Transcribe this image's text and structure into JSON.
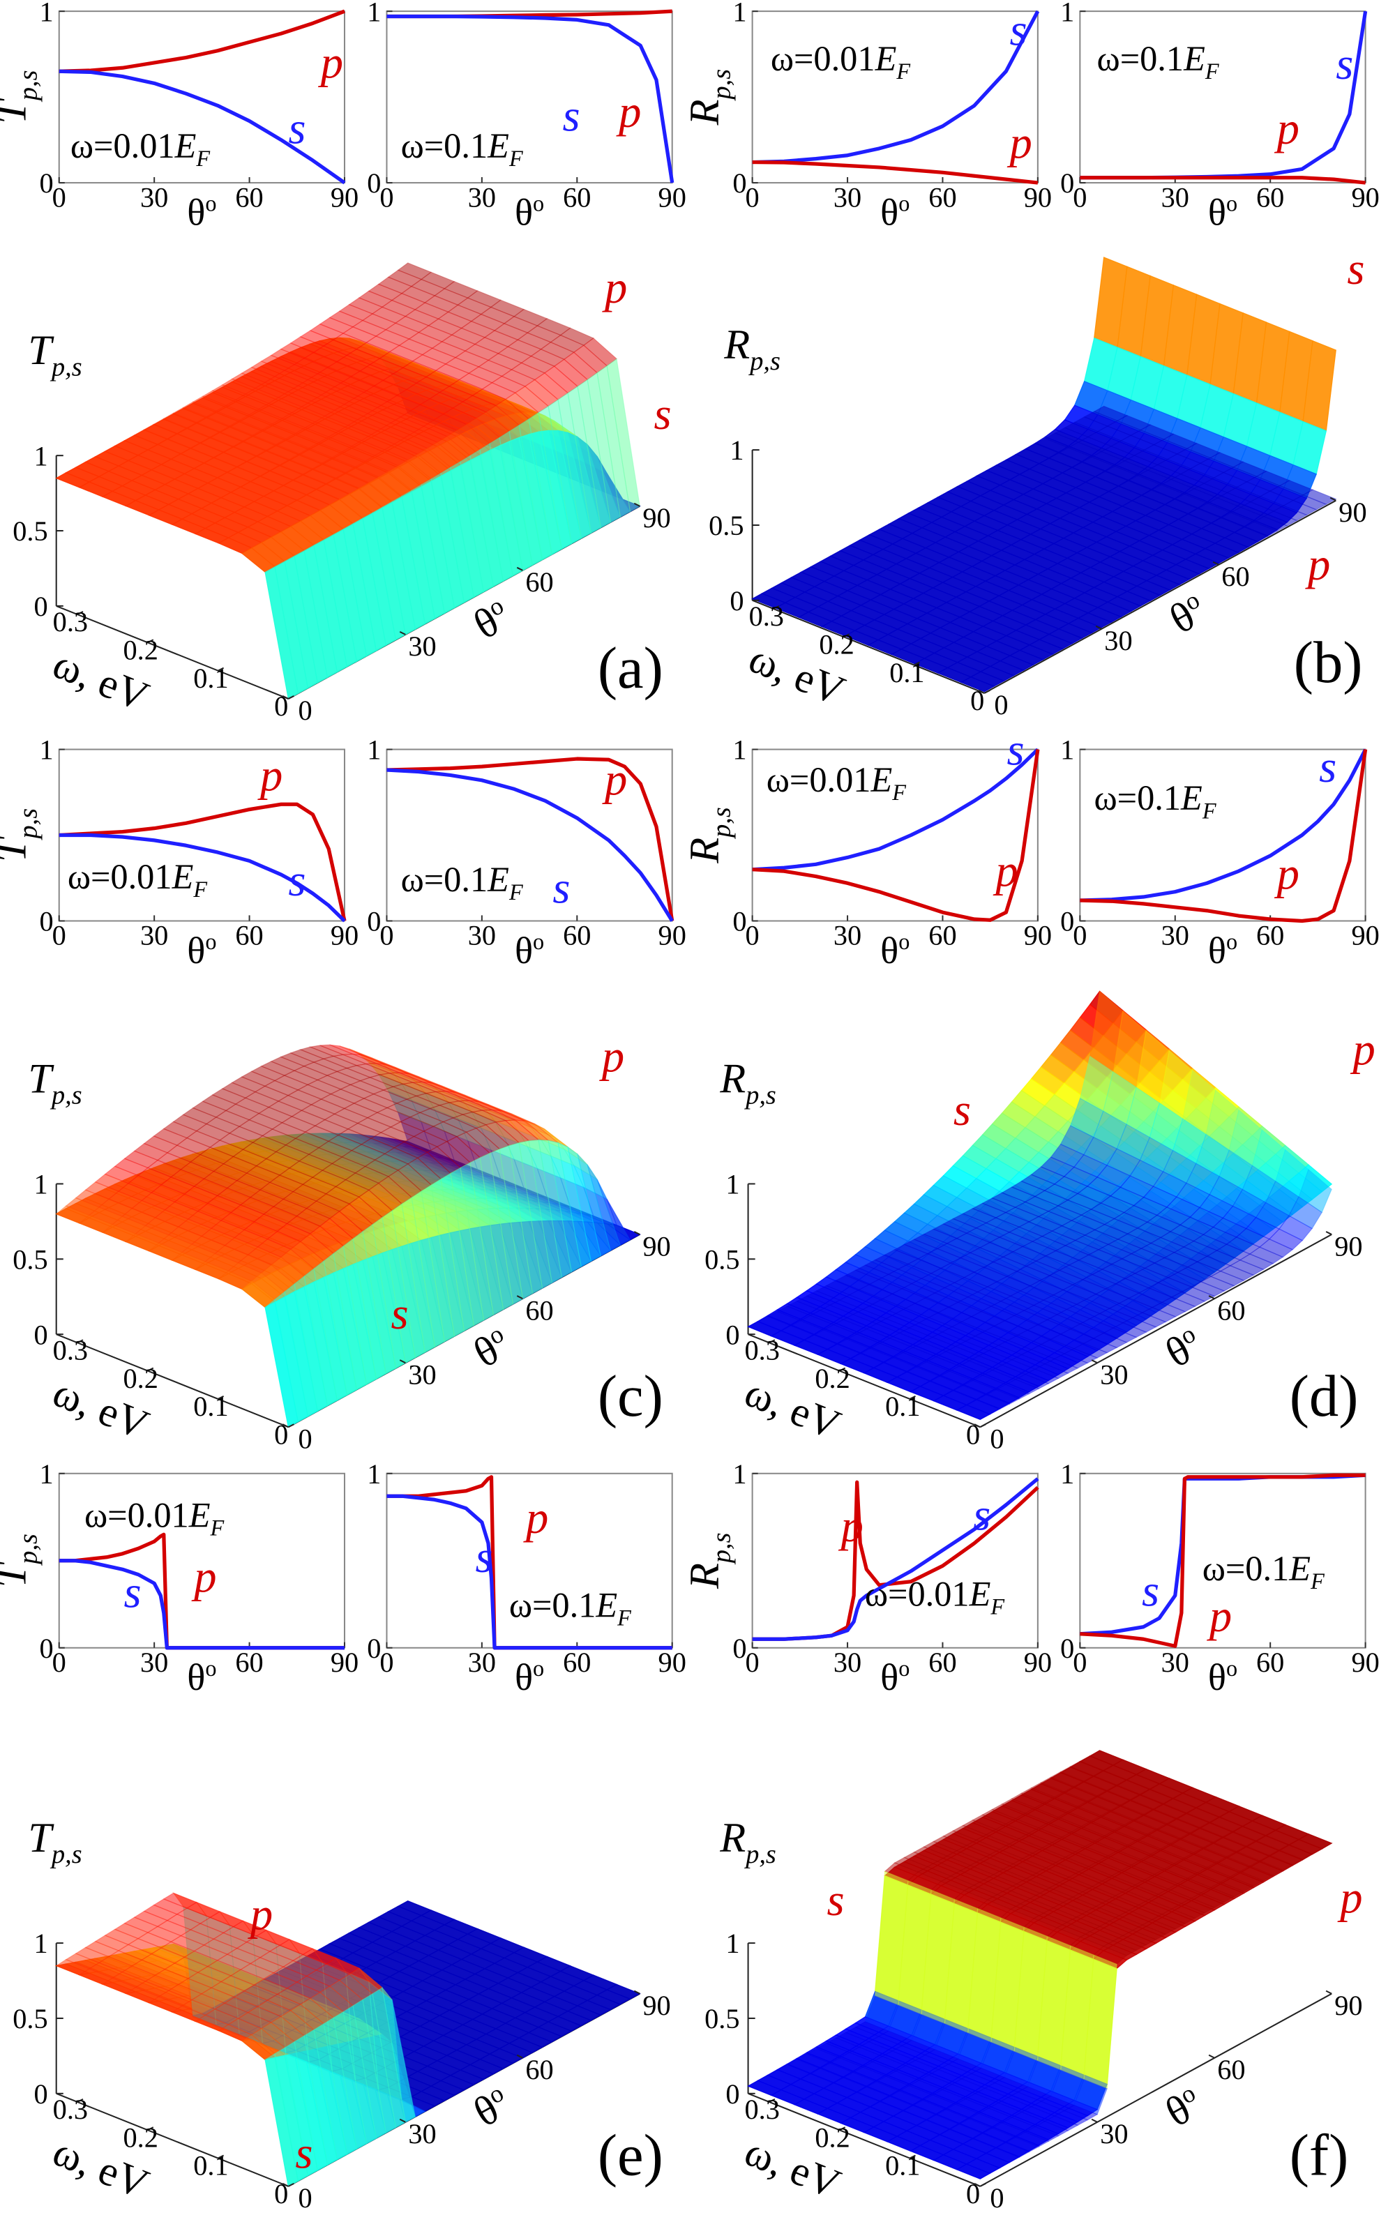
{
  "chart_data": [
    {
      "type": "line",
      "ylabel": [
        "T",
        "p,s"
      ],
      "annotation": [
        "ω=0.01",
        "E",
        "F"
      ],
      "xlabel": [
        "θ",
        "o"
      ],
      "xlim": [
        0,
        90
      ],
      "ylim": [
        0,
        1
      ],
      "xticks": [
        0,
        30,
        60,
        90
      ],
      "yticks": [
        0,
        1
      ],
      "x": [
        0,
        10,
        20,
        30,
        40,
        50,
        60,
        70,
        80,
        90
      ],
      "series": [
        {
          "name": "p",
          "color": "#d40000",
          "values": [
            0.65,
            0.655,
            0.67,
            0.7,
            0.73,
            0.77,
            0.82,
            0.87,
            0.93,
            1.0
          ]
        },
        {
          "name": "s",
          "color": "#1f1fff",
          "values": [
            0.65,
            0.645,
            0.62,
            0.58,
            0.52,
            0.45,
            0.36,
            0.25,
            0.13,
            0
          ]
        }
      ]
    },
    {
      "type": "line",
      "annotation": [
        "ω=0.1",
        "E",
        "F"
      ],
      "xlabel": [
        "θ",
        "o"
      ],
      "xlim": [
        0,
        90
      ],
      "ylim": [
        0,
        1
      ],
      "xticks": [
        0,
        30,
        60,
        90
      ],
      "yticks": [
        0,
        1
      ],
      "x": [
        0,
        10,
        20,
        30,
        40,
        50,
        60,
        70,
        80,
        85,
        90
      ],
      "series": [
        {
          "name": "p",
          "color": "#d40000",
          "values": [
            0.97,
            0.97,
            0.97,
            0.972,
            0.975,
            0.978,
            0.98,
            0.985,
            0.99,
            0.995,
            1.0
          ]
        },
        {
          "name": "s",
          "color": "#1f1fff",
          "values": [
            0.97,
            0.97,
            0.97,
            0.968,
            0.965,
            0.96,
            0.95,
            0.92,
            0.8,
            0.6,
            0
          ]
        }
      ]
    },
    {
      "type": "line",
      "ylabel": [
        "R",
        "p,s"
      ],
      "annotation": [
        "ω=0.01",
        "E",
        "F"
      ],
      "xlabel": [
        "θ",
        "o"
      ],
      "xlim": [
        0,
        90
      ],
      "ylim": [
        0,
        1
      ],
      "xticks": [
        0,
        30,
        60,
        90
      ],
      "yticks": [
        0,
        1
      ],
      "x": [
        0,
        10,
        20,
        30,
        40,
        50,
        60,
        70,
        80,
        90
      ],
      "series": [
        {
          "name": "s",
          "color": "#1f1fff",
          "values": [
            0.12,
            0.125,
            0.14,
            0.16,
            0.2,
            0.25,
            0.33,
            0.45,
            0.65,
            1.0
          ]
        },
        {
          "name": "p",
          "color": "#d40000",
          "values": [
            0.12,
            0.118,
            0.11,
            0.1,
            0.09,
            0.075,
            0.06,
            0.04,
            0.02,
            0
          ]
        }
      ]
    },
    {
      "type": "line",
      "annotation": [
        "ω=0.1",
        "E",
        "F"
      ],
      "xlabel": [
        "θ",
        "o"
      ],
      "xlim": [
        0,
        90
      ],
      "ylim": [
        0,
        1
      ],
      "xticks": [
        0,
        30,
        60,
        90
      ],
      "yticks": [
        0,
        1
      ],
      "x": [
        0,
        10,
        20,
        30,
        40,
        50,
        60,
        70,
        80,
        85,
        90
      ],
      "series": [
        {
          "name": "s",
          "color": "#1f1fff",
          "values": [
            0.03,
            0.03,
            0.03,
            0.032,
            0.035,
            0.04,
            0.05,
            0.08,
            0.2,
            0.4,
            1.0
          ]
        },
        {
          "name": "p",
          "color": "#d40000",
          "values": [
            0.03,
            0.03,
            0.03,
            0.03,
            0.03,
            0.03,
            0.03,
            0.03,
            0.02,
            0.01,
            0
          ]
        }
      ]
    },
    {
      "type": "surface3d",
      "zlabel": [
        "T",
        "p,s"
      ],
      "xlabel": "ω, eV",
      "ylabel": [
        "θ",
        "o"
      ],
      "label": "(a)",
      "xlim": [
        0,
        0.33
      ],
      "xticks": [
        0,
        0.1,
        0.2,
        0.3
      ],
      "ylim": [
        0,
        90
      ],
      "yticks": [
        0,
        30,
        60,
        90
      ],
      "zlim": [
        0,
        1
      ],
      "zticks": [
        0,
        0.5,
        1
      ],
      "series": [
        {
          "name": "p",
          "color": "#d40000"
        },
        {
          "name": "s",
          "color": "#d40000"
        }
      ]
    },
    {
      "type": "surface3d",
      "zlabel": [
        "R",
        "p,s"
      ],
      "xlabel": "ω, eV",
      "ylabel": [
        "θ",
        "o"
      ],
      "label": "(b)",
      "xlim": [
        0,
        0.33
      ],
      "xticks": [
        0,
        0.1,
        0.2,
        0.3
      ],
      "ylim": [
        0,
        90
      ],
      "yticks": [
        0,
        30,
        60,
        90
      ],
      "zlim": [
        0,
        1
      ],
      "zticks": [
        0,
        0.5,
        1
      ],
      "series": [
        {
          "name": "p",
          "color": "#d40000"
        },
        {
          "name": "s",
          "color": "#d40000"
        }
      ]
    },
    {
      "type": "line",
      "ylabel": [
        "T",
        "p,s"
      ],
      "annotation": [
        "ω=0.01",
        "E",
        "F"
      ],
      "xlabel": [
        "θ",
        "o"
      ],
      "xlim": [
        0,
        90
      ],
      "ylim": [
        0,
        1
      ],
      "xticks": [
        0,
        30,
        60,
        90
      ],
      "yticks": [
        0,
        1
      ],
      "x": [
        0,
        10,
        20,
        30,
        40,
        50,
        60,
        70,
        75,
        80,
        85,
        90
      ],
      "series": [
        {
          "name": "p",
          "color": "#d40000",
          "values": [
            0.5,
            0.51,
            0.52,
            0.54,
            0.57,
            0.61,
            0.65,
            0.68,
            0.68,
            0.62,
            0.42,
            0
          ]
        },
        {
          "name": "s",
          "color": "#1f1fff",
          "values": [
            0.5,
            0.5,
            0.49,
            0.47,
            0.44,
            0.4,
            0.35,
            0.27,
            0.22,
            0.16,
            0.09,
            0
          ]
        }
      ]
    },
    {
      "type": "line",
      "annotation": [
        "ω=0.1",
        "E",
        "F"
      ],
      "xlabel": [
        "θ",
        "o"
      ],
      "xlim": [
        0,
        90
      ],
      "ylim": [
        0,
        1
      ],
      "xticks": [
        0,
        30,
        60,
        90
      ],
      "yticks": [
        0,
        1
      ],
      "x": [
        0,
        10,
        20,
        30,
        40,
        50,
        60,
        70,
        75,
        80,
        85,
        90
      ],
      "series": [
        {
          "name": "p",
          "color": "#d40000",
          "values": [
            0.88,
            0.885,
            0.89,
            0.9,
            0.915,
            0.93,
            0.945,
            0.94,
            0.9,
            0.8,
            0.55,
            0
          ]
        },
        {
          "name": "s",
          "color": "#1f1fff",
          "values": [
            0.88,
            0.87,
            0.85,
            0.82,
            0.77,
            0.7,
            0.6,
            0.47,
            0.38,
            0.28,
            0.15,
            0
          ]
        }
      ]
    },
    {
      "type": "line",
      "ylabel": [
        "R",
        "p,s"
      ],
      "annotation": [
        "ω=0.01",
        "E",
        "F"
      ],
      "xlabel": [
        "θ",
        "o"
      ],
      "xlim": [
        0,
        90
      ],
      "ylim": [
        0,
        1
      ],
      "xticks": [
        0,
        30,
        60,
        90
      ],
      "yticks": [
        0,
        1
      ],
      "x": [
        0,
        10,
        20,
        30,
        40,
        50,
        60,
        70,
        75,
        80,
        85,
        90
      ],
      "series": [
        {
          "name": "s",
          "color": "#1f1fff",
          "values": [
            0.3,
            0.31,
            0.33,
            0.37,
            0.42,
            0.5,
            0.59,
            0.7,
            0.76,
            0.83,
            0.91,
            1.0
          ]
        },
        {
          "name": "p",
          "color": "#d40000",
          "values": [
            0.3,
            0.29,
            0.26,
            0.22,
            0.17,
            0.11,
            0.05,
            0.01,
            0.005,
            0.05,
            0.35,
            1.0
          ]
        }
      ]
    },
    {
      "type": "line",
      "annotation": [
        "ω=0.1",
        "E",
        "F"
      ],
      "xlabel": [
        "θ",
        "o"
      ],
      "xlim": [
        0,
        90
      ],
      "ylim": [
        0,
        1
      ],
      "xticks": [
        0,
        30,
        60,
        90
      ],
      "yticks": [
        0,
        1
      ],
      "x": [
        0,
        10,
        20,
        30,
        40,
        50,
        60,
        70,
        75,
        80,
        85,
        90
      ],
      "series": [
        {
          "name": "s",
          "color": "#1f1fff",
          "values": [
            0.12,
            0.125,
            0.14,
            0.17,
            0.22,
            0.29,
            0.38,
            0.5,
            0.58,
            0.68,
            0.82,
            1.0
          ]
        },
        {
          "name": "p",
          "color": "#d40000",
          "values": [
            0.12,
            0.115,
            0.1,
            0.08,
            0.06,
            0.03,
            0.01,
            0.0,
            0.01,
            0.06,
            0.35,
            1.0
          ]
        }
      ]
    },
    {
      "type": "surface3d",
      "zlabel": [
        "T",
        "p,s"
      ],
      "xlabel": "ω, eV",
      "ylabel": [
        "θ",
        "o"
      ],
      "label": "(c)",
      "xlim": [
        0,
        0.33
      ],
      "xticks": [
        0,
        0.1,
        0.2,
        0.3
      ],
      "ylim": [
        0,
        90
      ],
      "yticks": [
        0,
        30,
        60,
        90
      ],
      "zlim": [
        0,
        1
      ],
      "zticks": [
        0,
        0.5,
        1
      ],
      "series": [
        {
          "name": "p",
          "color": "#d40000"
        },
        {
          "name": "s",
          "color": "#d40000"
        }
      ]
    },
    {
      "type": "surface3d",
      "zlabel": [
        "R",
        "p,s"
      ],
      "xlabel": "ω, eV",
      "ylabel": [
        "θ",
        "o"
      ],
      "label": "(d)",
      "xlim": [
        0,
        0.33
      ],
      "xticks": [
        0,
        0.1,
        0.2,
        0.3
      ],
      "ylim": [
        0,
        90
      ],
      "yticks": [
        0,
        30,
        60,
        90
      ],
      "zlim": [
        0,
        1
      ],
      "zticks": [
        0,
        0.5,
        1
      ],
      "series": [
        {
          "name": "p",
          "color": "#d40000"
        },
        {
          "name": "s",
          "color": "#d40000"
        }
      ]
    },
    {
      "type": "line",
      "ylabel": [
        "T",
        "p,s"
      ],
      "annotation": [
        "ω=0.01",
        "E",
        "F"
      ],
      "xlabel": [
        "θ",
        "o"
      ],
      "xlim": [
        0,
        90
      ],
      "ylim": [
        0,
        1
      ],
      "xticks": [
        0,
        30,
        60,
        90
      ],
      "yticks": [
        0,
        1
      ],
      "x": [
        0,
        5,
        10,
        15,
        20,
        25,
        30,
        32,
        33,
        34,
        40,
        50,
        60,
        70,
        80,
        90
      ],
      "series": [
        {
          "name": "p",
          "color": "#d40000",
          "values": [
            0.5,
            0.5,
            0.51,
            0.52,
            0.54,
            0.57,
            0.61,
            0.64,
            0.65,
            0,
            0,
            0,
            0,
            0,
            0,
            0
          ]
        },
        {
          "name": "s",
          "color": "#1f1fff",
          "values": [
            0.5,
            0.5,
            0.49,
            0.47,
            0.45,
            0.42,
            0.37,
            0.3,
            0.2,
            0,
            0,
            0,
            0,
            0,
            0,
            0
          ]
        }
      ]
    },
    {
      "type": "line",
      "annotation": [
        "ω=0.1",
        "E",
        "F"
      ],
      "xlabel": [
        "θ",
        "o"
      ],
      "xlim": [
        0,
        90
      ],
      "ylim": [
        0,
        1
      ],
      "xticks": [
        0,
        30,
        60,
        90
      ],
      "yticks": [
        0,
        1
      ],
      "x": [
        0,
        5,
        10,
        15,
        20,
        25,
        30,
        32,
        33,
        34,
        40,
        50,
        60,
        70,
        80,
        90
      ],
      "series": [
        {
          "name": "p",
          "color": "#d40000",
          "values": [
            0.87,
            0.87,
            0.87,
            0.88,
            0.89,
            0.9,
            0.93,
            0.97,
            0.98,
            0,
            0,
            0,
            0,
            0,
            0,
            0
          ]
        },
        {
          "name": "s",
          "color": "#1f1fff",
          "values": [
            0.87,
            0.87,
            0.86,
            0.85,
            0.83,
            0.8,
            0.72,
            0.6,
            0.4,
            0,
            0,
            0,
            0,
            0,
            0,
            0
          ]
        }
      ]
    },
    {
      "type": "line",
      "ylabel": [
        "R",
        "p,s"
      ],
      "annotation": [
        "ω=0.01",
        "E",
        "F"
      ],
      "xlabel": [
        "θ",
        "o"
      ],
      "xlim": [
        0,
        90
      ],
      "ylim": [
        0,
        1
      ],
      "xticks": [
        0,
        30,
        60,
        90
      ],
      "yticks": [
        0,
        1
      ],
      "x": [
        0,
        10,
        20,
        25,
        30,
        32,
        33,
        34,
        36,
        40,
        50,
        60,
        70,
        80,
        90
      ],
      "series": [
        {
          "name": "p",
          "color": "#d40000",
          "values": [
            0.05,
            0.05,
            0.06,
            0.07,
            0.12,
            0.3,
            0.95,
            0.6,
            0.45,
            0.36,
            0.38,
            0.47,
            0.6,
            0.75,
            0.92
          ]
        },
        {
          "name": "s",
          "color": "#1f1fff",
          "values": [
            0.05,
            0.05,
            0.06,
            0.07,
            0.1,
            0.15,
            0.22,
            0.27,
            0.3,
            0.34,
            0.44,
            0.56,
            0.68,
            0.82,
            0.97
          ]
        }
      ]
    },
    {
      "type": "line",
      "annotation": [
        "ω=0.1",
        "E",
        "F"
      ],
      "xlabel": [
        "θ",
        "o"
      ],
      "xlim": [
        0,
        90
      ],
      "ylim": [
        0,
        1
      ],
      "xticks": [
        0,
        30,
        60,
        90
      ],
      "yticks": [
        0,
        1
      ],
      "x": [
        0,
        10,
        20,
        25,
        30,
        32,
        33,
        34,
        40,
        50,
        60,
        70,
        80,
        90
      ],
      "series": [
        {
          "name": "s",
          "color": "#1f1fff",
          "values": [
            0.08,
            0.09,
            0.12,
            0.17,
            0.3,
            0.6,
            0.97,
            0.97,
            0.97,
            0.97,
            0.98,
            0.98,
            0.98,
            0.99
          ]
        },
        {
          "name": "p",
          "color": "#d40000",
          "values": [
            0.08,
            0.07,
            0.05,
            0.03,
            0.01,
            0.2,
            0.97,
            0.98,
            0.98,
            0.98,
            0.98,
            0.98,
            0.99,
            0.99
          ]
        }
      ]
    },
    {
      "type": "surface3d",
      "zlabel": [
        "T",
        "p,s"
      ],
      "xlabel": "ω, eV",
      "ylabel": [
        "θ",
        "o"
      ],
      "label": "(e)",
      "xlim": [
        0,
        0.33
      ],
      "xticks": [
        0,
        0.1,
        0.2,
        0.3
      ],
      "ylim": [
        0,
        90
      ],
      "yticks": [
        0,
        30,
        60,
        90
      ],
      "zlim": [
        0,
        1
      ],
      "zticks": [
        0,
        0.5,
        1
      ],
      "series": [
        {
          "name": "p",
          "color": "#d40000"
        },
        {
          "name": "s",
          "color": "#d40000"
        }
      ]
    },
    {
      "type": "surface3d",
      "zlabel": [
        "R",
        "p,s"
      ],
      "xlabel": "ω, eV",
      "ylabel": [
        "θ",
        "o"
      ],
      "label": "(f)",
      "xlim": [
        0,
        0.33
      ],
      "xticks": [
        0,
        0.1,
        0.2,
        0.3
      ],
      "ylim": [
        0,
        90
      ],
      "yticks": [
        0,
        30,
        60,
        90
      ],
      "zlim": [
        0,
        1
      ],
      "zticks": [
        0,
        0.5,
        1
      ],
      "series": [
        {
          "name": "p",
          "color": "#d40000"
        },
        {
          "name": "s",
          "color": "#d40000"
        }
      ]
    }
  ]
}
